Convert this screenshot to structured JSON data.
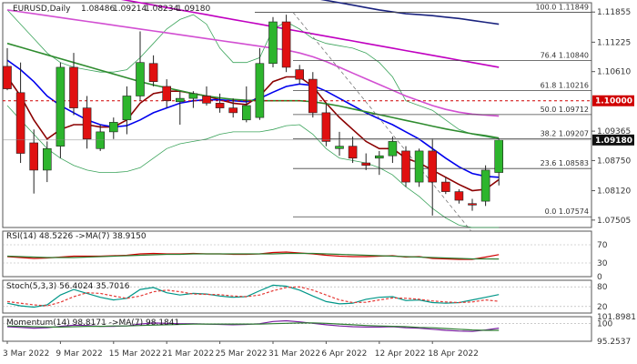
{
  "chart_data": [
    {
      "type": "candlestick",
      "title": "EURUSD,Daily",
      "ohlc_header": [
        "1.08486",
        "1.09214",
        "1.08234",
        "1.09180"
      ],
      "x_categories": [
        "3 Mar 2022",
        "9 Mar 2022",
        "15 Mar 2022",
        "21 Mar 2022",
        "25 Mar 2022",
        "31 Mar 2022",
        "6 Apr 2022",
        "12 Apr 2022",
        "18 Apr 2022"
      ],
      "y_ticks": [
        "1.11855",
        "1.11225",
        "1.10610",
        "1.09365",
        "1.08750",
        "1.08120",
        "1.07505"
      ],
      "ylim": [
        1.0735,
        1.1205
      ],
      "current_price": "1.09180",
      "reference_level": "1.10000",
      "candles": [
        {
          "o": 1.1072,
          "h": 1.111,
          "l": 1.1022,
          "c": 1.1025
        },
        {
          "o": 1.1017,
          "h": 1.108,
          "l": 1.087,
          "c": 1.089
        },
        {
          "o": 1.0912,
          "h": 1.094,
          "l": 1.0806,
          "c": 1.0855
        },
        {
          "o": 1.0855,
          "h": 1.0915,
          "l": 1.083,
          "c": 1.09
        },
        {
          "o": 1.0905,
          "h": 1.108,
          "l": 1.088,
          "c": 1.107
        },
        {
          "o": 1.107,
          "h": 1.11,
          "l": 1.097,
          "c": 1.0985
        },
        {
          "o": 1.0985,
          "h": 1.101,
          "l": 1.09,
          "c": 1.092
        },
        {
          "o": 1.09,
          "h": 1.095,
          "l": 1.0895,
          "c": 1.0935
        },
        {
          "o": 1.0935,
          "h": 1.0965,
          "l": 1.092,
          "c": 1.0955
        },
        {
          "o": 1.096,
          "h": 1.103,
          "l": 1.093,
          "c": 1.101
        },
        {
          "o": 1.101,
          "h": 1.1145,
          "l": 1.1,
          "c": 1.108
        },
        {
          "o": 1.1078,
          "h": 1.1095,
          "l": 1.103,
          "c": 1.104
        },
        {
          "o": 1.103,
          "h": 1.1045,
          "l": 1.0985,
          "c": 1.1
        },
        {
          "o": 1.0998,
          "h": 1.102,
          "l": 1.095,
          "c": 1.1005
        },
        {
          "o": 1.1005,
          "h": 1.102,
          "l": 1.0985,
          "c": 1.1015
        },
        {
          "o": 1.101,
          "h": 1.103,
          "l": 1.099,
          "c": 1.0995
        },
        {
          "o": 1.0995,
          "h": 1.1015,
          "l": 1.0975,
          "c": 1.0985
        },
        {
          "o": 1.0985,
          "h": 1.1005,
          "l": 1.0965,
          "c": 1.0975
        },
        {
          "o": 1.096,
          "h": 1.103,
          "l": 1.0955,
          "c": 1.099
        },
        {
          "o": 1.0965,
          "h": 1.111,
          "l": 1.096,
          "c": 1.1078
        },
        {
          "o": 1.1078,
          "h": 1.1175,
          "l": 1.107,
          "c": 1.1165
        },
        {
          "o": 1.1165,
          "h": 1.118,
          "l": 1.106,
          "c": 1.107
        },
        {
          "o": 1.1065,
          "h": 1.1075,
          "l": 1.1035,
          "c": 1.1045
        },
        {
          "o": 1.1045,
          "h": 1.106,
          "l": 1.0965,
          "c": 1.0975
        },
        {
          "o": 1.0975,
          "h": 1.0995,
          "l": 1.0905,
          "c": 1.0915
        },
        {
          "o": 1.09,
          "h": 1.0935,
          "l": 1.0885,
          "c": 1.0905
        },
        {
          "o": 1.0905,
          "h": 1.0925,
          "l": 1.087,
          "c": 1.088
        },
        {
          "o": 1.087,
          "h": 1.089,
          "l": 1.0855,
          "c": 1.0865
        },
        {
          "o": 1.088,
          "h": 1.0895,
          "l": 1.0845,
          "c": 1.0885
        },
        {
          "o": 1.0885,
          "h": 1.0925,
          "l": 1.087,
          "c": 1.0915
        },
        {
          "o": 1.0895,
          "h": 1.0905,
          "l": 1.082,
          "c": 1.083
        },
        {
          "o": 1.083,
          "h": 1.09,
          "l": 1.082,
          "c": 1.0895
        },
        {
          "o": 1.0895,
          "h": 1.092,
          "l": 1.076,
          "c": 1.083
        },
        {
          "o": 1.083,
          "h": 1.084,
          "l": 1.0805,
          "c": 1.081
        },
        {
          "o": 1.081,
          "h": 1.0815,
          "l": 1.0785,
          "c": 1.0792
        },
        {
          "o": 1.0785,
          "h": 1.0795,
          "l": 1.077,
          "c": 1.0782
        },
        {
          "o": 1.079,
          "h": 1.0865,
          "l": 1.078,
          "c": 1.0855
        },
        {
          "o": 1.085,
          "h": 1.0921,
          "l": 1.0823,
          "c": 1.0918
        }
      ],
      "fib_levels": [
        {
          "label": "100.0",
          "value": "1.11849"
        },
        {
          "label": "76.4",
          "value": "1.10840"
        },
        {
          "label": "61.8",
          "value": "1.10216"
        },
        {
          "label": "50.0",
          "value": "1.09712"
        },
        {
          "label": "38.2",
          "value": "1.09207"
        },
        {
          "label": "23.6",
          "value": "1.08583"
        },
        {
          "label": "0.0",
          "value": "1.07574"
        }
      ],
      "moving_averages": [
        {
          "color": "#8b0000",
          "values": [
            1.105,
            1.101,
            1.096,
            1.092,
            1.094,
            1.095,
            1.095,
            1.0945,
            1.0945,
            1.096,
            1.0995,
            1.1015,
            1.102,
            1.102,
            1.1015,
            1.101,
            1.1002,
            1.0995,
            1.0992,
            1.101,
            1.104,
            1.105,
            1.105,
            1.103,
            1.0995,
            1.0965,
            1.094,
            1.0915,
            1.09,
            1.09,
            1.088,
            1.087,
            1.0855,
            1.084,
            1.0825,
            1.0812,
            1.0815,
            1.0835
          ]
        },
        {
          "color": "#0000ee",
          "values": [
            1.1085,
            1.1065,
            1.104,
            1.101,
            1.099,
            1.0975,
            1.096,
            1.095,
            1.0945,
            1.0948,
            1.096,
            1.0975,
            1.0985,
            1.0995,
            1.1,
            1.1002,
            1.1002,
            1.1,
            1.0998,
            1.1005,
            1.1018,
            1.103,
            1.1035,
            1.1032,
            1.102,
            1.1005,
            1.099,
            1.0975,
            1.0962,
            1.095,
            1.0935,
            1.092,
            1.09,
            1.088,
            1.0862,
            1.0848,
            1.0842,
            1.084
          ]
        },
        {
          "color": "#2e8b2e",
          "values": [
            1.112,
            1.1112,
            1.1104,
            1.1096,
            1.1088,
            1.108,
            1.1072,
            1.1064,
            1.1056,
            1.1048,
            1.104,
            1.1033,
            1.1027,
            1.1021,
            1.1015,
            1.101,
            1.1006,
            1.1003,
            1.1001,
            1.1,
            1.1,
            1.1,
            1.1,
            1.0998,
            1.0994,
            1.0989,
            1.0983,
            1.0977,
            1.0971,
            1.0965,
            1.0959,
            1.0953,
            1.0947,
            1.0941,
            1.0936,
            1.0931,
            1.0927,
            1.0922
          ]
        },
        {
          "color": "#d24fd2",
          "values": [
            1.119,
            1.1186,
            1.1182,
            1.1178,
            1.1174,
            1.117,
            1.1166,
            1.1162,
            1.1158,
            1.1154,
            1.115,
            1.1146,
            1.1142,
            1.1138,
            1.1134,
            1.113,
            1.1126,
            1.1122,
            1.1118,
            1.1114,
            1.111,
            1.1106,
            1.11,
            1.1092,
            1.1082,
            1.107,
            1.1058,
            1.1046,
            1.1034,
            1.1022,
            1.101,
            1.1,
            1.099,
            1.0982,
            1.0976,
            1.0972,
            1.097,
            1.0968
          ]
        },
        {
          "color": "#c000c0",
          "values": [
            1.1255,
            1.125,
            1.1245,
            1.124,
            1.1235,
            1.123,
            1.1225,
            1.122,
            1.1215,
            1.121,
            1.1205,
            1.12,
            1.1195,
            1.119,
            1.1185,
            1.118,
            1.1175,
            1.117,
            1.1165,
            1.116,
            1.1155,
            1.115,
            1.1145,
            1.114,
            1.1135,
            1.113,
            1.1125,
            1.112,
            1.1115,
            1.111,
            1.1105,
            1.11,
            1.1095,
            1.109,
            1.1085,
            1.108,
            1.1075,
            1.107
          ]
        },
        {
          "color": "#1a237e",
          "values": [
            1.133,
            1.1325,
            1.132,
            1.1315,
            1.131,
            1.1305,
            1.13,
            1.1295,
            1.129,
            1.1285,
            1.128,
            1.1275,
            1.127,
            1.1265,
            1.126,
            1.1255,
            1.125,
            1.1245,
            1.124,
            1.1235,
            1.123,
            1.1225,
            1.122,
            1.1215,
            1.121,
            1.1205,
            1.12,
            1.1195,
            1.119,
            1.1186,
            1.1182,
            1.118,
            1.1178,
            1.1175,
            1.1172,
            1.1168,
            1.1164,
            1.116
          ]
        }
      ],
      "bollinger_upper": [
        1.119,
        1.116,
        1.113,
        1.11,
        1.108,
        1.107,
        1.1065,
        1.106,
        1.106,
        1.1065,
        1.109,
        1.112,
        1.115,
        1.117,
        1.118,
        1.116,
        1.111,
        1.108,
        1.108,
        1.109,
        1.115,
        1.1165,
        1.115,
        1.113,
        1.112,
        1.1115,
        1.111,
        1.11,
        1.108,
        1.105,
        1.1,
        1.099,
        1.098,
        1.096,
        1.094,
        1.093,
        1.0925,
        1.092
      ],
      "bollinger_lower": [
        1.099,
        1.096,
        1.093,
        1.09,
        1.088,
        1.0865,
        1.0855,
        1.085,
        1.085,
        1.0852,
        1.086,
        1.088,
        1.09,
        1.091,
        1.0915,
        1.092,
        1.093,
        1.0935,
        1.0935,
        1.0935,
        1.094,
        1.0948,
        1.095,
        1.093,
        1.09,
        1.088,
        1.0875,
        1.087,
        1.086,
        1.0845,
        1.082,
        1.08,
        1.0775,
        1.0755,
        1.074,
        1.0735,
        1.0735,
        1.0735
      ]
    },
    {
      "type": "line",
      "title": "RSI(14) 48.5226 ->MA(7) 38.9150",
      "y_ticks": [
        "70",
        "30",
        "0"
      ],
      "ylim": [
        0,
        100
      ],
      "series": [
        {
          "color": "#d00000",
          "values": [
            44,
            42,
            40,
            41,
            43,
            45,
            45,
            45,
            46,
            47,
            50,
            51,
            50,
            50,
            51,
            50,
            50,
            49,
            49,
            50,
            53,
            54,
            52,
            50,
            47,
            45,
            44,
            44,
            45,
            46,
            43,
            44,
            40,
            39,
            38,
            38,
            43,
            48.5
          ]
        },
        {
          "color": "#2e7d32",
          "values": [
            45,
            44,
            43,
            42,
            42,
            42,
            43,
            44,
            45,
            46,
            47,
            48,
            49,
            49,
            50,
            50,
            50,
            50,
            50,
            50,
            50,
            51,
            51,
            51,
            50,
            49,
            48,
            47,
            46,
            45,
            44,
            43,
            42,
            41,
            40,
            39,
            39,
            38.9
          ]
        }
      ]
    },
    {
      "type": "line",
      "title": "Stoch(5,3,3) 56.4024 35.7016",
      "y_ticks": [
        "80",
        "20"
      ],
      "ylim": [
        0,
        100
      ],
      "series": [
        {
          "color": "#009688",
          "values": [
            30,
            22,
            18,
            25,
            55,
            72,
            60,
            48,
            40,
            45,
            72,
            78,
            62,
            55,
            60,
            58,
            52,
            48,
            50,
            68,
            85,
            82,
            70,
            52,
            35,
            28,
            30,
            42,
            48,
            50,
            38,
            40,
            32,
            30,
            32,
            40,
            48,
            56.4
          ]
        },
        {
          "color": "#e53935",
          "values": [
            35,
            30,
            25,
            22,
            33,
            50,
            62,
            60,
            52,
            45,
            52,
            65,
            70,
            65,
            58,
            57,
            56,
            52,
            50,
            55,
            68,
            78,
            80,
            70,
            55,
            40,
            32,
            33,
            40,
            46,
            45,
            42,
            37,
            34,
            32,
            34,
            40,
            35.7
          ]
        }
      ]
    },
    {
      "type": "line",
      "title": "Momentum(14) 98.8171 ->MA(7) 98.1841",
      "y_ticks": [
        "101.8981",
        "100",
        "95.2537"
      ],
      "ylim": [
        95.2537,
        101.8981
      ],
      "series": [
        {
          "color": "#7b1fa2",
          "values": [
            99.2,
            99.0,
            98.8,
            98.9,
            99.3,
            99.6,
            99.5,
            99.3,
            99.3,
            99.4,
            99.9,
            100.2,
            100.1,
            100.0,
            100.0,
            99.9,
            99.8,
            99.7,
            99.8,
            100.0,
            100.6,
            100.8,
            100.5,
            100.1,
            99.7,
            99.4,
            99.2,
            99.1,
            99.1,
            99.2,
            98.9,
            98.8,
            98.5,
            98.2,
            98.0,
            97.9,
            98.3,
            98.8
          ]
        },
        {
          "color": "#2e7d32",
          "values": [
            99.4,
            99.3,
            99.2,
            99.1,
            99.1,
            99.2,
            99.3,
            99.3,
            99.4,
            99.4,
            99.5,
            99.6,
            99.7,
            99.8,
            99.9,
            99.9,
            99.9,
            99.9,
            99.9,
            99.9,
            100.0,
            100.1,
            100.2,
            100.2,
            100.1,
            99.9,
            99.7,
            99.5,
            99.4,
            99.3,
            99.2,
            99.0,
            98.9,
            98.7,
            98.5,
            98.3,
            98.2,
            98.2
          ]
        }
      ]
    }
  ]
}
